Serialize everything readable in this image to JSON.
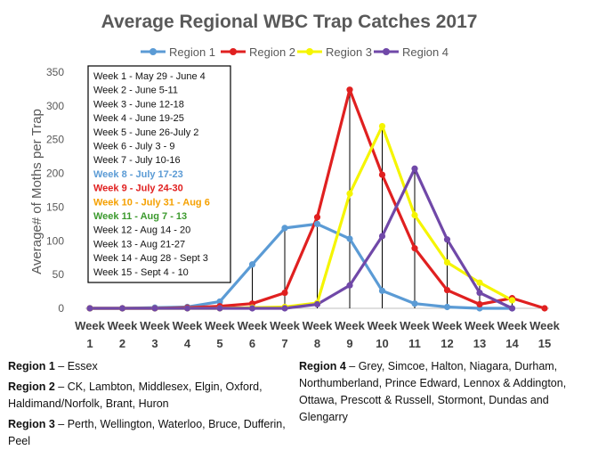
{
  "chart_data": {
    "type": "line",
    "title": "Average Regional WBC Trap Catches 2017",
    "ylabel": "Average# of Moths per Trap",
    "xlabel": "",
    "categories": [
      "Week 1",
      "Week 2",
      "Week 3",
      "Week 4",
      "Week 5",
      "Week 6",
      "Week 7",
      "Week 8",
      "Week 9",
      "Week 10",
      "Week 11",
      "Week 12",
      "Week 13",
      "Week 14",
      "Week 15"
    ],
    "tick_top": "Week",
    "tick_bottom": [
      "1",
      "2",
      "3",
      "4",
      "5",
      "6",
      "7",
      "8",
      "9",
      "10",
      "11",
      "12",
      "13",
      "14",
      "15"
    ],
    "ylim": [
      0,
      350
    ],
    "yticks": [
      "0",
      "50",
      "100",
      "150",
      "200",
      "250",
      "300",
      "350"
    ],
    "ytick_values": [
      0,
      50,
      100,
      150,
      200,
      250,
      300,
      350
    ],
    "grid": false,
    "legend_position": "top",
    "series": [
      {
        "name": "Region 1",
        "color": "#5b9bd5",
        "values": [
          0,
          0,
          1,
          2,
          10,
          65,
          119,
          125,
          103,
          26,
          7,
          2,
          0,
          0,
          null
        ]
      },
      {
        "name": "Region 2",
        "color": "#e02020",
        "values": [
          0,
          0,
          0,
          1,
          3,
          7,
          23,
          135,
          324,
          198,
          89,
          27,
          6,
          15,
          0
        ]
      },
      {
        "name": "Region 3",
        "color": "#f5f500",
        "values": [
          0,
          0,
          0,
          0,
          0,
          1,
          2,
          8,
          170,
          270,
          138,
          68,
          38,
          12,
          null
        ]
      },
      {
        "name": "Region 4",
        "color": "#7048a8",
        "values": [
          0,
          0,
          0,
          0,
          0,
          0,
          0,
          6,
          34,
          107,
          207,
          102,
          23,
          0,
          null
        ]
      }
    ],
    "week_key": [
      {
        "text": "Week 1 - May 29 - June 4",
        "color": "#111111"
      },
      {
        "text": "Week 2 - June 5-11",
        "color": "#111111"
      },
      {
        "text": "Week 3 - June 12-18",
        "color": "#111111"
      },
      {
        "text": "Week 4 - June 19-25",
        "color": "#111111"
      },
      {
        "text": "Week 5 -  June 26-July 2",
        "color": "#111111"
      },
      {
        "text": "Week 6 - July 3 - 9",
        "color": "#111111"
      },
      {
        "text": "Week 7 - July 10-16",
        "color": "#111111"
      },
      {
        "text": "Week 8 - July 17-23",
        "color": "#5b9bd5"
      },
      {
        "text": "Week 9 - July 24-30",
        "color": "#e02020"
      },
      {
        "text": "Week 10 - July 31 - Aug 6",
        "color": "#f5a000"
      },
      {
        "text": "Week 11 - Aug 7 - 13",
        "color": "#3c9a2e"
      },
      {
        "text": "Week 12 - Aug 14 - 20",
        "color": "#111111"
      },
      {
        "text": "Week 13 -  Aug 21-27",
        "color": "#111111"
      },
      {
        "text": "Week 14 - Aug 28 - Sept 3",
        "color": "#111111"
      },
      {
        "text": "Week 15 - Sept 4 - 10",
        "color": "#111111"
      }
    ]
  },
  "region_notes": {
    "r1": {
      "label": "Region 1",
      "text": " – Essex"
    },
    "r2": {
      "label": "Region 2",
      "text": " – CK, Lambton, Middlesex, Elgin, Oxford, Haldimand/Norfolk, Brant, Huron"
    },
    "r3": {
      "label": "Region 3",
      "text": " – Perth, Wellington, Waterloo, Bruce, Dufferin, Peel"
    },
    "r4": {
      "label": "Region 4",
      "text": " – Grey, Simcoe, Halton, Niagara, Durham, Northumberland, Prince Edward, Lennox & Addington, Ottawa, Prescott & Russell, Stormont, Dundas and Glengarry"
    }
  }
}
